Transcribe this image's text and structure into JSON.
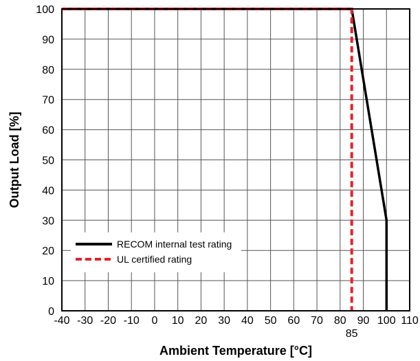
{
  "chart_data": {
    "type": "line",
    "title": "",
    "xlabel": "Ambient Temperature [°C]",
    "ylabel": "Output Load [%]",
    "xlim": [
      -40,
      110
    ],
    "ylim": [
      0,
      100
    ],
    "x_ticks": [
      -40,
      -30,
      -20,
      -10,
      0,
      10,
      20,
      30,
      40,
      50,
      60,
      70,
      80,
      90,
      100,
      110
    ],
    "x_tick_labels": [
      "-40",
      "-30",
      "-20",
      "-10",
      "0",
      "10",
      "20",
      "30",
      "40",
      "50",
      "60",
      "70",
      "80",
      "90",
      "100",
      "110"
    ],
    "x_extra_tick": {
      "value": 85,
      "label": "85"
    },
    "y_ticks": [
      0,
      10,
      20,
      30,
      40,
      50,
      60,
      70,
      80,
      90,
      100
    ],
    "y_tick_labels": [
      "0",
      "10",
      "20",
      "30",
      "40",
      "50",
      "60",
      "70",
      "80",
      "90",
      "100"
    ],
    "grid": true,
    "legend_position": "bottom-left",
    "series": [
      {
        "name": "RECOM internal test rating",
        "color": "#000000",
        "style": "solid",
        "points": [
          [
            -40,
            100
          ],
          [
            85,
            100
          ],
          [
            100,
            30
          ],
          [
            100,
            0
          ]
        ]
      },
      {
        "name": "UL certified rating",
        "color": "#e8202a",
        "style": "dashed",
        "points": [
          [
            -40,
            100
          ],
          [
            85,
            100
          ],
          [
            85,
            0
          ]
        ]
      }
    ]
  }
}
